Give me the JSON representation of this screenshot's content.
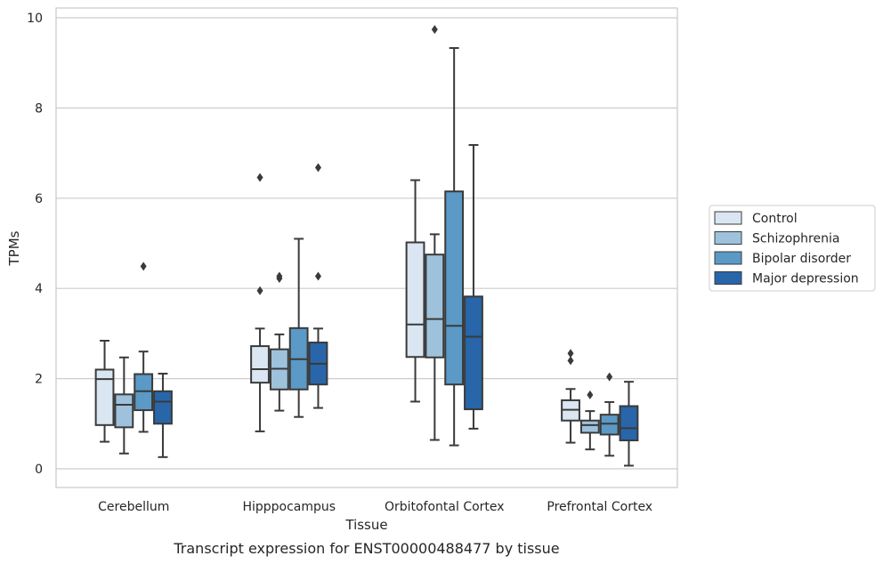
{
  "caption": "Transcript expression for ENST00000488477 by tissue",
  "chart_data": {
    "type": "box",
    "xlabel": "Tissue",
    "ylabel": "TPMs",
    "ylim": [
      -0.4,
      10.2
    ],
    "yticks": [
      0,
      2,
      4,
      6,
      8,
      10
    ],
    "grid": "horizontal",
    "legend_position": "right",
    "categories": [
      "Cerebellum",
      "Hipppocampus",
      "Orbitofontal Cortex",
      "Prefrontal Cortex"
    ],
    "series": [
      {
        "name": "Control",
        "color": "#dae6f2",
        "boxes": [
          {
            "whislo": 0.6,
            "q1": 0.97,
            "med": 1.99,
            "q3": 2.2,
            "whishi": 2.84,
            "fliers": []
          },
          {
            "whislo": 0.83,
            "q1": 1.91,
            "med": 2.21,
            "q3": 2.72,
            "whishi": 3.11,
            "fliers": [
              3.95,
              6.46
            ]
          },
          {
            "whislo": 1.49,
            "q1": 2.48,
            "med": 3.2,
            "q3": 5.02,
            "whishi": 6.4,
            "fliers": []
          },
          {
            "whislo": 0.58,
            "q1": 1.07,
            "med": 1.31,
            "q3": 1.52,
            "whishi": 1.77,
            "fliers": [
              2.4,
              2.56
            ]
          }
        ]
      },
      {
        "name": "Schizophrenia",
        "color": "#9ec2dc",
        "boxes": [
          {
            "whislo": 0.34,
            "q1": 0.92,
            "med": 1.42,
            "q3": 1.65,
            "whishi": 2.47,
            "fliers": []
          },
          {
            "whislo": 1.29,
            "q1": 1.76,
            "med": 2.22,
            "q3": 2.65,
            "whishi": 2.98,
            "fliers": [
              4.22,
              4.27
            ]
          },
          {
            "whislo": 0.64,
            "q1": 2.47,
            "med": 3.32,
            "q3": 4.75,
            "whishi": 5.2,
            "fliers": [
              9.74
            ]
          },
          {
            "whislo": 0.43,
            "q1": 0.8,
            "med": 0.97,
            "q3": 1.07,
            "whishi": 1.28,
            "fliers": [
              1.64
            ]
          }
        ]
      },
      {
        "name": "Bipolar disorder",
        "color": "#5b99c6",
        "boxes": [
          {
            "whislo": 0.82,
            "q1": 1.3,
            "med": 1.72,
            "q3": 2.1,
            "whishi": 2.6,
            "fliers": [
              4.49
            ]
          },
          {
            "whislo": 1.15,
            "q1": 1.76,
            "med": 2.43,
            "q3": 3.12,
            "whishi": 5.1,
            "fliers": []
          },
          {
            "whislo": 0.52,
            "q1": 1.87,
            "med": 3.17,
            "q3": 6.15,
            "whishi": 9.33,
            "fliers": []
          },
          {
            "whislo": 0.29,
            "q1": 0.76,
            "med": 1.0,
            "q3": 1.2,
            "whishi": 1.48,
            "fliers": [
              2.04
            ]
          }
        ]
      },
      {
        "name": "Major depression",
        "color": "#2866a9",
        "boxes": [
          {
            "whislo": 0.26,
            "q1": 1.0,
            "med": 1.49,
            "q3": 1.72,
            "whishi": 2.11,
            "fliers": []
          },
          {
            "whislo": 1.35,
            "q1": 1.87,
            "med": 2.33,
            "q3": 2.8,
            "whishi": 3.11,
            "fliers": [
              4.27,
              6.68
            ]
          },
          {
            "whislo": 0.89,
            "q1": 1.32,
            "med": 2.93,
            "q3": 3.82,
            "whishi": 7.18,
            "fliers": []
          },
          {
            "whislo": 0.07,
            "q1": 0.63,
            "med": 0.9,
            "q3": 1.39,
            "whishi": 1.93,
            "fliers": []
          }
        ]
      }
    ]
  }
}
